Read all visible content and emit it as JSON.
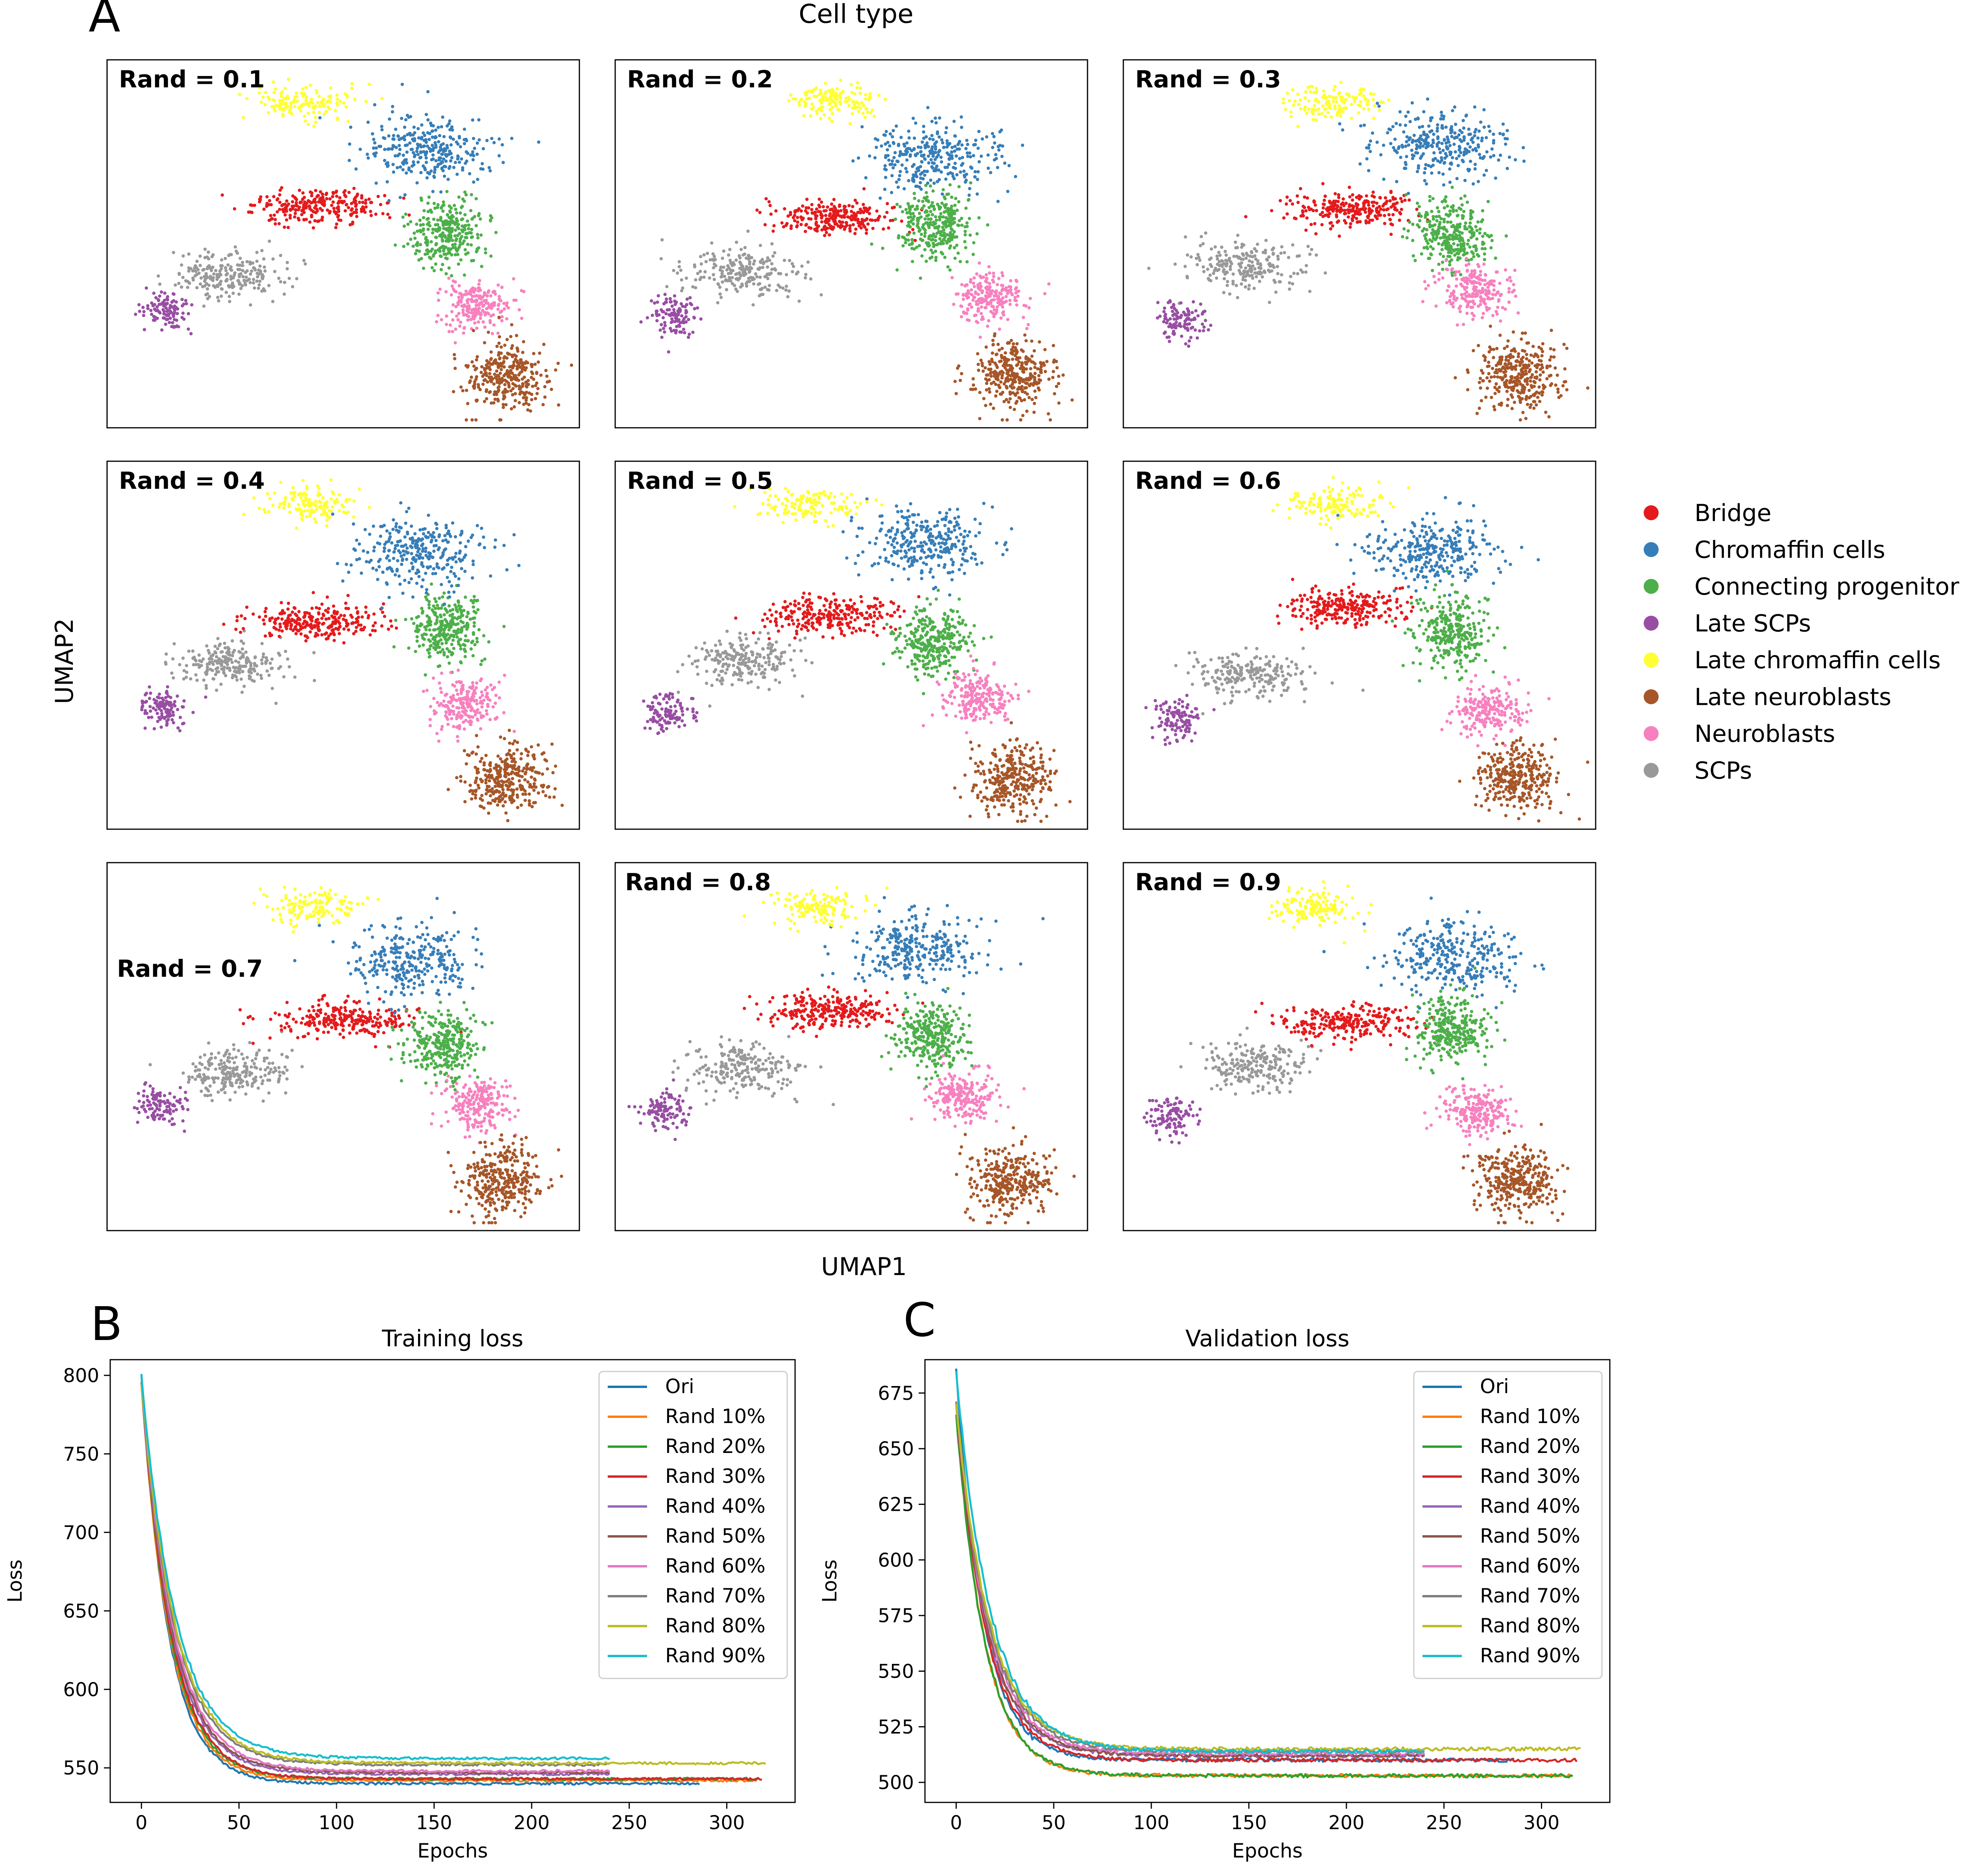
{
  "figure": {
    "panel_letters": [
      "A",
      "B",
      "C"
    ],
    "section_title": "Cell type",
    "umap_xlabel": "UMAP1",
    "umap_ylabel": "UMAP2"
  },
  "umap_panels": [
    {
      "label": "Rand = 0.1"
    },
    {
      "label": "Rand = 0.2"
    },
    {
      "label": "Rand = 0.3"
    },
    {
      "label": "Rand = 0.4"
    },
    {
      "label": "Rand = 0.5"
    },
    {
      "label": "Rand = 0.6"
    },
    {
      "label": "Rand = 0.7"
    },
    {
      "label": "Rand = 0.8"
    },
    {
      "label": "Rand = 0.9"
    }
  ],
  "cell_types": [
    {
      "name": "Bridge",
      "color": "#e41a1c"
    },
    {
      "name": "Chromaffin cells",
      "color": "#377eb8"
    },
    {
      "name": "Connecting progenitor cells",
      "color": "#4daf4a"
    },
    {
      "name": "Late SCPs",
      "color": "#984ea3"
    },
    {
      "name": "Late chromaffin cells",
      "color": "#ffff33"
    },
    {
      "name": "Late neuroblasts",
      "color": "#a65628"
    },
    {
      "name": "Neuroblasts",
      "color": "#f781bf"
    },
    {
      "name": "SCPs",
      "color": "#999999"
    }
  ],
  "chart_data": [
    {
      "type": "scatter",
      "title": "Cell type",
      "xlabel": "UMAP1",
      "ylabel": "UMAP2",
      "panels": [
        "Rand = 0.1",
        "Rand = 0.2",
        "Rand = 0.3",
        "Rand = 0.4",
        "Rand = 0.5",
        "Rand = 0.6",
        "Rand = 0.7",
        "Rand = 0.8",
        "Rand = 0.9"
      ],
      "legend": [
        "Bridge",
        "Chromaffin cells",
        "Connecting progenitor cells",
        "Late SCPs",
        "Late chromaffin cells",
        "Late neuroblasts",
        "Neuroblasts",
        "SCPs"
      ],
      "legend_position": "right"
    },
    {
      "type": "line",
      "title": "Training loss",
      "xlabel": "Epochs",
      "ylabel": "Loss",
      "xlim": [
        -16,
        335
      ],
      "ylim": [
        528,
        810
      ],
      "xticks": [
        0,
        50,
        100,
        150,
        200,
        250,
        300
      ],
      "yticks": [
        550,
        600,
        650,
        700,
        750,
        800
      ],
      "legend_position": "top-right",
      "series": [
        {
          "name": "Ori",
          "color": "#1f77b4",
          "start": 800,
          "end": 540,
          "epochs": 286
        },
        {
          "name": "Rand 10%",
          "color": "#ff7f0e",
          "start": 795,
          "end": 542,
          "epochs": 315
        },
        {
          "name": "Rand 20%",
          "color": "#2ca02c",
          "start": 795,
          "end": 543,
          "epochs": 316
        },
        {
          "name": "Rand 30%",
          "color": "#d62728",
          "start": 795,
          "end": 543,
          "epochs": 318
        },
        {
          "name": "Rand 40%",
          "color": "#9467bd",
          "start": 795,
          "end": 546,
          "epochs": 240
        },
        {
          "name": "Rand 50%",
          "color": "#8c564b",
          "start": 795,
          "end": 547,
          "epochs": 240
        },
        {
          "name": "Rand 60%",
          "color": "#e377c2",
          "start": 795,
          "end": 548,
          "epochs": 240
        },
        {
          "name": "Rand 70%",
          "color": "#7f7f7f",
          "start": 795,
          "end": 552,
          "epochs": 240
        },
        {
          "name": "Rand 80%",
          "color": "#bcbd22",
          "start": 795,
          "end": 553,
          "epochs": 320
        },
        {
          "name": "Rand 90%",
          "color": "#17becf",
          "start": 800,
          "end": 556,
          "epochs": 240
        }
      ]
    },
    {
      "type": "line",
      "title": "Validation loss",
      "xlabel": "Epochs",
      "ylabel": "Loss",
      "xlim": [
        -16,
        335
      ],
      "ylim": [
        491,
        690
      ],
      "xticks": [
        0,
        50,
        100,
        150,
        200,
        250,
        300
      ],
      "yticks": [
        500,
        525,
        550,
        575,
        600,
        625,
        650,
        675
      ],
      "legend_position": "top-right",
      "series": [
        {
          "name": "Ori",
          "color": "#1f77b4",
          "start": 685,
          "end": 510,
          "epochs": 286
        },
        {
          "name": "Rand 10%",
          "color": "#ff7f0e",
          "start": 670,
          "end": 503,
          "epochs": 315
        },
        {
          "name": "Rand 20%",
          "color": "#2ca02c",
          "start": 665,
          "end": 503,
          "epochs": 316
        },
        {
          "name": "Rand 30%",
          "color": "#d62728",
          "start": 670,
          "end": 510,
          "epochs": 318
        },
        {
          "name": "Rand 40%",
          "color": "#9467bd",
          "start": 670,
          "end": 512,
          "epochs": 240
        },
        {
          "name": "Rand 50%",
          "color": "#8c564b",
          "start": 670,
          "end": 512,
          "epochs": 240
        },
        {
          "name": "Rand 60%",
          "color": "#e377c2",
          "start": 670,
          "end": 513,
          "epochs": 240
        },
        {
          "name": "Rand 70%",
          "color": "#7f7f7f",
          "start": 670,
          "end": 514,
          "epochs": 240
        },
        {
          "name": "Rand 80%",
          "color": "#bcbd22",
          "start": 670,
          "end": 515,
          "epochs": 320
        },
        {
          "name": "Rand 90%",
          "color": "#17becf",
          "start": 685,
          "end": 514,
          "epochs": 240
        }
      ]
    }
  ]
}
